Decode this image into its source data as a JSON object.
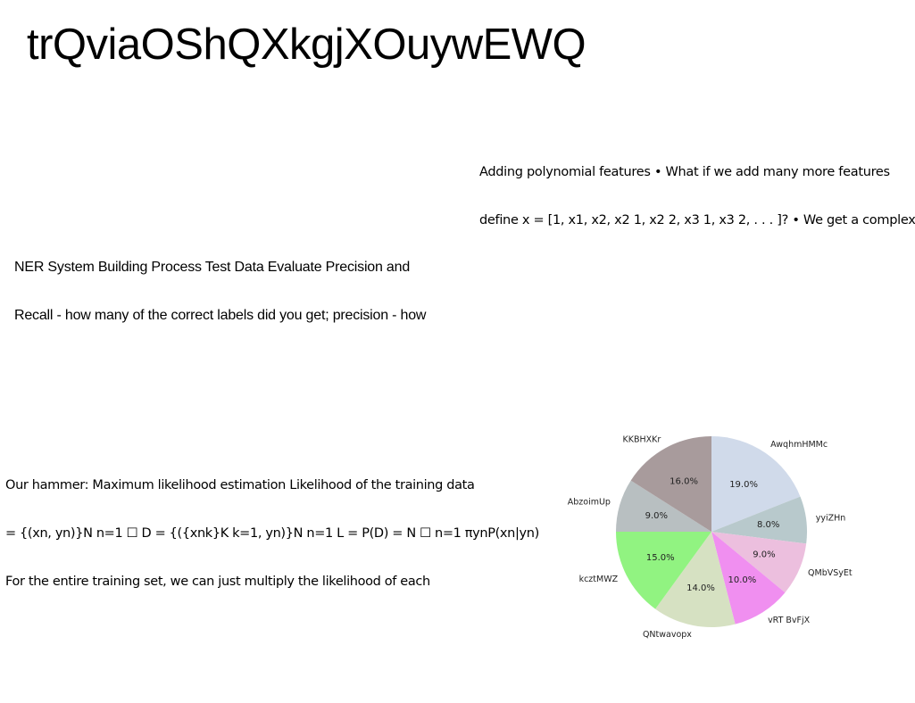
{
  "slide": {
    "title": "trQviaOShQXkgjXOuywEWQ",
    "poly_lines": [
      "Adding polynomial features • What if we add many more features",
      "define x = [1, x1, x2, x2 1, x2 2, x3 1, x3 2, . . . ]? • We get a complex"
    ],
    "ner_lines": [
      "NER System Building Process Test Data Evaluate Precision and",
      "Recall - how many of the correct labels did you get; precision - how"
    ],
    "hammer_lines": [
      "Our hammer: Maximum likelihood estimation Likelihood of the training data",
      "= {(xn, yn)}N n=1 ☐ D = {({xnk}K k=1, yn)}N n=1 L = P(D) = N ☐ n=1 πynP(xn|yn)",
      "For the entire training set, we can just multiply the likelihood of each"
    ]
  },
  "chart_data": {
    "type": "pie",
    "start_angle_deg": 90,
    "direction": "clockwise",
    "slices": [
      {
        "label": "AwqhmHMMc",
        "value": 19.0,
        "pct_label": "19.0%",
        "color": "#d0daea"
      },
      {
        "label": "yyiZHn",
        "value": 8.0,
        "pct_label": "8.0%",
        "color": "#b8c9cc"
      },
      {
        "label": "QMbVSyEt",
        "value": 9.0,
        "pct_label": "9.0%",
        "color": "#ecbfde"
      },
      {
        "label": "vRT BvFjX",
        "value": 10.0,
        "pct_label": "10.0%",
        "color": "#f08ff0"
      },
      {
        "label": "QNtwavopx",
        "value": 14.0,
        "pct_label": "14.0%",
        "color": "#d6e1c2"
      },
      {
        "label": "kcztMWZ",
        "value": 15.0,
        "pct_label": "15.0%",
        "color": "#91f381"
      },
      {
        "label": "AbzoimUp",
        "value": 9.0,
        "pct_label": "9.0%",
        "color": "#b8bfc1"
      },
      {
        "label": "KKBHXKr",
        "value": 16.0,
        "pct_label": "16.0%",
        "color": "#a89b9c"
      }
    ]
  }
}
